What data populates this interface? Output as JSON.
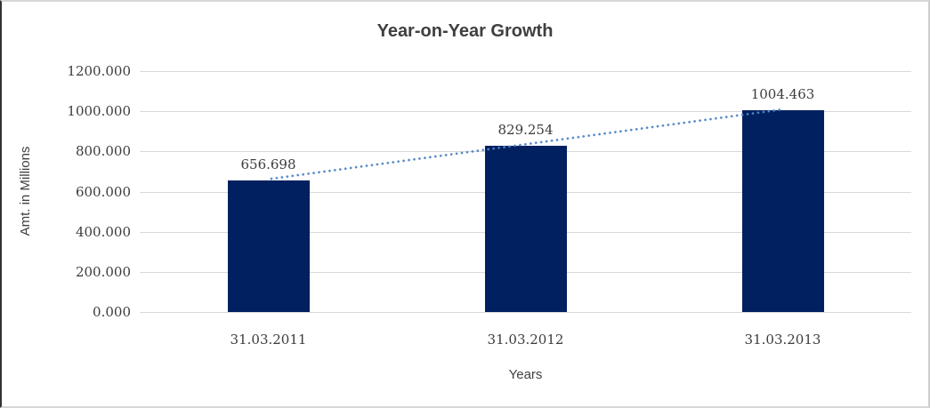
{
  "chart_data": {
    "type": "bar",
    "title": "Year-on-Year Growth",
    "xlabel": "Years",
    "ylabel": "Amt. in Millions",
    "categories": [
      "31.03.2011",
      "31.03.2012",
      "31.03.2013"
    ],
    "values": [
      656.698,
      829.254,
      1004.463
    ],
    "value_labels": [
      "656.698",
      "829.254",
      "1004.463"
    ],
    "ylim": [
      0,
      1200
    ],
    "ytick_values": [
      0,
      200,
      400,
      600,
      800,
      1000,
      1200
    ],
    "ytick_labels": [
      "0.000",
      "200.000",
      "400.000",
      "600.000",
      "800.000",
      "1000.000",
      "1200.000"
    ],
    "grid": true,
    "legend": "none",
    "trendline": {
      "type": "linear",
      "style": "dotted",
      "color": "#4f86c6"
    },
    "colors": {
      "bar": "#002060",
      "gridline": "#d9d9d9",
      "title_text": "#3f3f3f",
      "tick_text": "#3c3c3c",
      "background": "#ffffff"
    }
  }
}
